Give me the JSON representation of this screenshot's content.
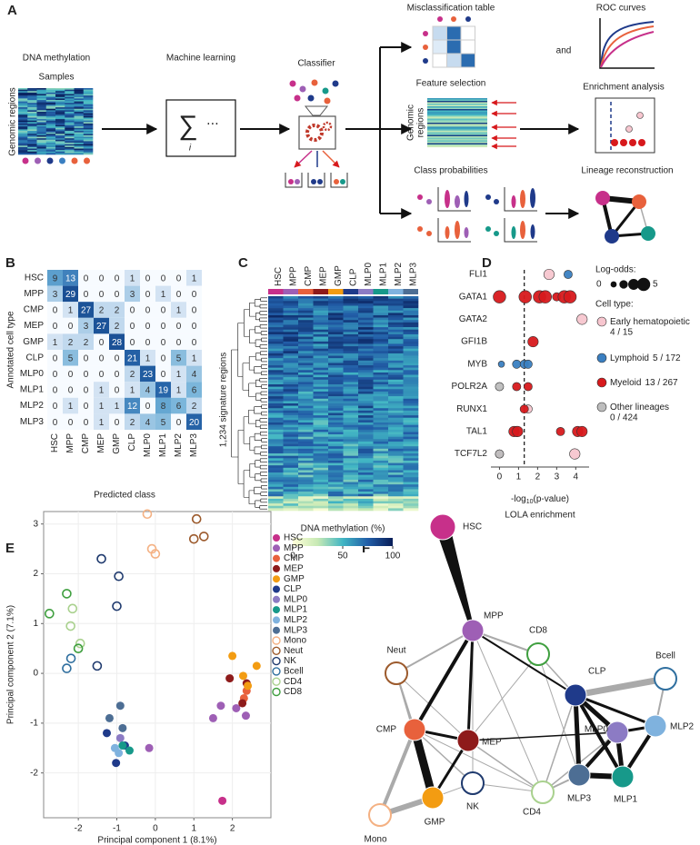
{
  "panel_labels": [
    "A",
    "B",
    "C",
    "D",
    "E",
    "F"
  ],
  "schematic": {
    "dna_methylation": "DNA methylation",
    "samples": "Samples",
    "genomic_regions": "Genomic regions",
    "machine_learning": "Machine learning",
    "sum_symbol": "∑",
    "sum_index": "i",
    "ellipsis": "⋯",
    "classifier": "Classifier",
    "misclassification_table": "Misclassification table",
    "and": "and",
    "roc_curves": "ROC curves",
    "feature_selection": "Feature selection",
    "genomic_regions_2": [
      "Genomic",
      "regions"
    ],
    "enrichment_analysis": "Enrichment analysis",
    "class_probabilities": "Class probabilities",
    "lineage_reconstruction": "Lineage reconstruction"
  },
  "chart_data": [
    {
      "type": "heatmap",
      "xlabel": "Predicted class",
      "ylabel": "Annotated cell type",
      "categories": [
        "HSC",
        "MPP",
        "CMP",
        "MEP",
        "GMP",
        "CLP",
        "MLP0",
        "MLP1",
        "MLP2",
        "MLP3"
      ],
      "values": [
        [
          9,
          13,
          0,
          0,
          0,
          1,
          0,
          0,
          0,
          1
        ],
        [
          3,
          29,
          0,
          0,
          0,
          3,
          0,
          1,
          0,
          0
        ],
        [
          0,
          1,
          27,
          2,
          2,
          0,
          0,
          0,
          1,
          0
        ],
        [
          0,
          0,
          3,
          27,
          2,
          0,
          0,
          0,
          0,
          0
        ],
        [
          1,
          2,
          2,
          0,
          28,
          0,
          0,
          0,
          0,
          0
        ],
        [
          0,
          5,
          0,
          0,
          0,
          21,
          1,
          0,
          5,
          1
        ],
        [
          0,
          0,
          0,
          0,
          0,
          2,
          23,
          0,
          1,
          4
        ],
        [
          0,
          0,
          0,
          1,
          0,
          1,
          4,
          19,
          1,
          6
        ],
        [
          0,
          1,
          0,
          1,
          1,
          12,
          0,
          8,
          6,
          2
        ],
        [
          0,
          0,
          0,
          1,
          0,
          2,
          4,
          5,
          0,
          20
        ]
      ],
      "colormap": [
        "#f7fbff",
        "#c6dbef",
        "#6baed6",
        "#2b6cb0",
        "#1a4f94"
      ]
    },
    {
      "type": "methylation-heatmap",
      "categories": [
        "HSC",
        "MPP",
        "CMP",
        "MEP",
        "GMP",
        "CLP",
        "MLP0",
        "MLP1",
        "MLP2",
        "MLP3"
      ],
      "category_colors": [
        "#c7308a",
        "#9e5fb5",
        "#e8613c",
        "#8e1b1b",
        "#f39c12",
        "#1f3a8a",
        "#8c7bc4",
        "#17998a",
        "#7fb2de",
        "#4d6e94"
      ],
      "ylabel": "1,234 signature regions",
      "colorbar_title": "DNA methylation (%)",
      "clim": [
        0,
        100
      ],
      "cticks": [
        0,
        50,
        100
      ],
      "colormap": [
        "#ffffd9",
        "#c7e9b4",
        "#41b6c4",
        "#225ea8",
        "#081d58"
      ]
    },
    {
      "type": "dot",
      "categories": [
        "FLI1",
        "GATA1",
        "GATA2",
        "GFI1B",
        "MYB",
        "POLR2A",
        "RUNX1",
        "TAL1",
        "TCF7L2"
      ],
      "xlabel_parts": [
        "-log",
        "10",
        "(p-value)"
      ],
      "title": "LOLA enrichment",
      "xlim": [
        -0.45,
        4.7
      ],
      "xticks": [
        0,
        1,
        2,
        3,
        4
      ],
      "threshold": 1.3,
      "size_legend_title": "Log-odds:",
      "size_legend_ticks": [
        0,
        5
      ],
      "color_legend_title": "Cell type:",
      "series": [
        {
          "name": "Early hematopoietic",
          "counts": "4 / 15",
          "color": "#f7c6cf",
          "x": [
            2.6,
            4.33,
            1.5,
            0.9,
            0,
            3.95
          ],
          "y": [
            "FLI1",
            "GATA2",
            "RUNX1",
            "TAL1",
            "TCF7L2",
            "TCF7L2"
          ],
          "sizes": [
            3,
            3,
            2,
            3,
            2,
            3
          ]
        },
        {
          "name": "Lymphoid",
          "counts": "5 / 172",
          "color": "#3a7fc1",
          "x": [
            3.6,
            0.1,
            0.9,
            1.3,
            1.5
          ],
          "y": [
            "FLI1",
            "MYB",
            "MYB",
            "MYB",
            "MYB"
          ],
          "sizes": [
            2,
            1,
            2,
            2,
            2
          ]
        },
        {
          "name": "Myeloid",
          "counts": "13 / 267",
          "color": "#d7191c",
          "x": [
            0,
            1.35,
            2.1,
            2.4,
            3.0,
            3.4,
            3.7,
            1.76,
            0.9,
            1.5,
            1.3,
            0.76,
            0.95,
            3.2,
            4.1,
            4.33
          ],
          "y": [
            "GATA1",
            "GATA1",
            "GATA1",
            "GATA1",
            "GATA1",
            "GATA1",
            "GATA1",
            "GFI1B",
            "POLR2A",
            "POLR2A",
            "RUNX1",
            "TAL1",
            "TAL1",
            "TAL1",
            "TAL1",
            "TAL1"
          ],
          "sizes": [
            4,
            4,
            4,
            4,
            2,
            4,
            4,
            3,
            2,
            2,
            2,
            3,
            3,
            2,
            3,
            3
          ]
        },
        {
          "name": "Other lineages",
          "counts": "0 / 424",
          "color": "#bdbdbd",
          "x": [
            0,
            0
          ],
          "y": [
            "POLR2A",
            "TCF7L2"
          ],
          "sizes": [
            2,
            2
          ]
        }
      ]
    },
    {
      "type": "scatter",
      "xlabel": "Principal component 1 (8.1%)",
      "ylabel": "Principal component 2 (7.1%)",
      "xlim": [
        -2.9,
        3
      ],
      "ylim": [
        -2.9,
        3.25
      ],
      "xticks": [
        -2,
        -1,
        0,
        1,
        2
      ],
      "yticks": [
        -2,
        -1,
        0,
        1,
        2,
        3
      ],
      "grid": true,
      "series": [
        {
          "name": "HSC",
          "color": "#c7308a",
          "marker": "filled",
          "x": [
            1.74
          ],
          "y": [
            -2.56
          ]
        },
        {
          "name": "MPP",
          "color": "#9e5fb5",
          "marker": "filled",
          "x": [
            -0.16,
            1.5,
            1.7,
            2.1,
            2.35
          ],
          "y": [
            -1.5,
            -0.9,
            -0.65,
            -0.7,
            -0.85
          ]
        },
        {
          "name": "CMP",
          "color": "#e8613c",
          "marker": "filled",
          "x": [
            2.3,
            2.37
          ],
          "y": [
            -0.5,
            -0.35
          ]
        },
        {
          "name": "MEP",
          "color": "#8e1b1b",
          "marker": "filled",
          "x": [
            1.93,
            2.26,
            2.37
          ],
          "y": [
            -0.1,
            -0.6,
            -0.2
          ]
        },
        {
          "name": "GMP",
          "color": "#f39c12",
          "marker": "filled",
          "x": [
            2.0,
            2.63,
            2.28,
            2.4
          ],
          "y": [
            0.35,
            0.15,
            -0.05,
            -0.25
          ]
        },
        {
          "name": "CLP",
          "color": "#1f3a8a",
          "marker": "filled",
          "x": [
            -1.26,
            -1.02,
            -0.79
          ],
          "y": [
            -1.2,
            -1.8,
            -1.45
          ]
        },
        {
          "name": "MLP0",
          "color": "#8c7bc4",
          "marker": "filled",
          "x": [
            -0.91
          ],
          "y": [
            -1.3
          ]
        },
        {
          "name": "MLP1",
          "color": "#17998a",
          "marker": "filled",
          "x": [
            -0.67,
            -0.85
          ],
          "y": [
            -1.55,
            -1.45
          ]
        },
        {
          "name": "MLP2",
          "color": "#7fb2de",
          "marker": "filled",
          "x": [
            -1.05,
            -0.95
          ],
          "y": [
            -1.5,
            -1.6
          ]
        },
        {
          "name": "MLP3",
          "color": "#4d6e94",
          "marker": "filled",
          "x": [
            -1.19,
            -0.91,
            -0.85
          ],
          "y": [
            -0.9,
            -0.65,
            -1.1
          ]
        },
        {
          "name": "Mono",
          "color": "#f4b183",
          "marker": "open",
          "x": [
            -0.21,
            -0.09,
            0
          ],
          "y": [
            3.2,
            2.5,
            2.4
          ]
        },
        {
          "name": "Neut",
          "color": "#9c5a2c",
          "marker": "open",
          "x": [
            1.07,
            1.0,
            1.26
          ],
          "y": [
            3.1,
            2.7,
            2.75
          ]
        },
        {
          "name": "NK",
          "color": "#1f3a6e",
          "marker": "open",
          "x": [
            -1.4,
            -0.95,
            -1.0,
            -1.51
          ],
          "y": [
            2.3,
            1.95,
            1.35,
            0.15
          ]
        },
        {
          "name": "Bcell",
          "color": "#2f6f9f",
          "marker": "open",
          "x": [
            -2.3,
            -2.19
          ],
          "y": [
            0.1,
            0.3
          ]
        },
        {
          "name": "CD4",
          "color": "#a9d18e",
          "marker": "open",
          "x": [
            -2.15,
            -2.2,
            -1.95
          ],
          "y": [
            1.3,
            0.95,
            0.6
          ]
        },
        {
          "name": "CD8",
          "color": "#3f9f3f",
          "marker": "open",
          "x": [
            -2.75,
            -2.3,
            -2.0
          ],
          "y": [
            1.2,
            1.6,
            0.5
          ]
        }
      ]
    }
  ],
  "network": {
    "nodes": [
      {
        "label": "HSC",
        "color": "#c7308a",
        "filled": true
      },
      {
        "label": "MPP",
        "color": "#9e5fb5",
        "filled": true
      },
      {
        "label": "CMP",
        "color": "#e8613c",
        "filled": true
      },
      {
        "label": "MEP",
        "color": "#8e1b1b",
        "filled": true
      },
      {
        "label": "GMP",
        "color": "#f39c12",
        "filled": true
      },
      {
        "label": "CLP",
        "color": "#1f3a8a",
        "filled": true
      },
      {
        "label": "MLP0",
        "color": "#8c7bc4",
        "filled": true
      },
      {
        "label": "MLP1",
        "color": "#17998a",
        "filled": true
      },
      {
        "label": "MLP2",
        "color": "#7fb2de",
        "filled": true
      },
      {
        "label": "MLP3",
        "color": "#4d6e94",
        "filled": true
      },
      {
        "label": "Mono",
        "color": "#f4b183",
        "filled": false
      },
      {
        "label": "Neut",
        "color": "#9c5a2c",
        "filled": false
      },
      {
        "label": "NK",
        "color": "#1f3a6e",
        "filled": false
      },
      {
        "label": "Bcell",
        "color": "#2f6f9f",
        "filled": false
      },
      {
        "label": "CD4",
        "color": "#a9d18e",
        "filled": false
      },
      {
        "label": "CD8",
        "color": "#3f9f3f",
        "filled": false
      }
    ]
  }
}
